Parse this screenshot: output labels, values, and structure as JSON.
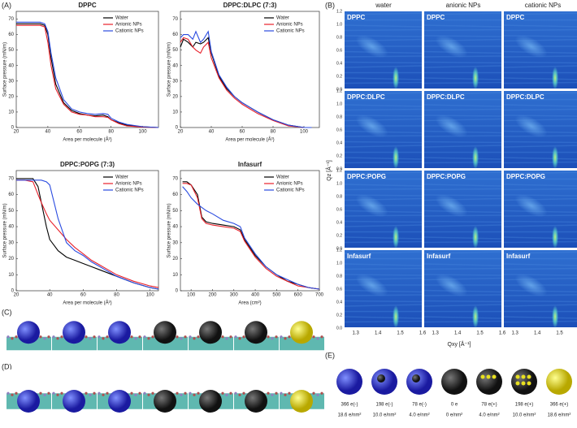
{
  "panel_labels": [
    "(A)",
    "(B)",
    "(C)",
    "(D)",
    "(E)"
  ],
  "chart_data": [
    {
      "type": "line",
      "title": "DPPC",
      "xlabel": "Area per molecule (Å²)",
      "ylabel": "Surface pressure (mN/m)",
      "legend": "upper right",
      "x": [
        20,
        25,
        30,
        35,
        38,
        40,
        42,
        45,
        50,
        55,
        60,
        65,
        70,
        75,
        78,
        80,
        85,
        90,
        100,
        110
      ],
      "xlim": [
        20,
        110
      ],
      "ylim": [
        0,
        75
      ],
      "xticks": [
        20,
        40,
        60,
        80,
        100
      ],
      "yticks": [
        0,
        10,
        20,
        30,
        40,
        50,
        60,
        70
      ],
      "series": [
        {
          "name": "Water",
          "color": "#000000",
          "values": [
            67,
            67,
            67,
            67,
            66,
            60,
            45,
            28,
            16,
            11,
            9,
            8,
            7.5,
            8,
            7,
            5,
            3,
            1.5,
            0.5,
            0
          ]
        },
        {
          "name": "Anionic NPs",
          "color": "#e8202a",
          "values": [
            66,
            66,
            66,
            66,
            65,
            55,
            40,
            25,
            15,
            10,
            8.5,
            8,
            7,
            7,
            6.5,
            5,
            2.5,
            1,
            0.3,
            0
          ]
        },
        {
          "name": "Cationic NPs",
          "color": "#2a4be0",
          "values": [
            68,
            68,
            68,
            68,
            67,
            62,
            48,
            32,
            18,
            12,
            10,
            9,
            8.5,
            9,
            8.5,
            6,
            3.5,
            2,
            0.5,
            0
          ]
        }
      ]
    },
    {
      "type": "line",
      "title": "DPPC:DLPC (7:3)",
      "xlabel": "Area per molecule (Å²)",
      "ylabel": "Surface pressure (mN/m)",
      "legend": "upper right",
      "x": [
        20,
        22,
        25,
        28,
        30,
        33,
        35,
        38,
        40,
        45,
        50,
        55,
        60,
        65,
        70,
        80,
        90,
        100,
        105
      ],
      "xlim": [
        20,
        110
      ],
      "ylim": [
        0,
        75
      ],
      "xticks": [
        20,
        40,
        60,
        80,
        100
      ],
      "yticks": [
        0,
        10,
        20,
        30,
        40,
        50,
        60,
        70
      ],
      "series": [
        {
          "name": "Water",
          "color": "#000000",
          "values": [
            52,
            57,
            55,
            52,
            55,
            54,
            55,
            58,
            48,
            33,
            25,
            20,
            16,
            13,
            10,
            5,
            1.5,
            0,
            0
          ]
        },
        {
          "name": "Anionic NPs",
          "color": "#e8202a",
          "values": [
            55,
            58,
            57,
            52,
            50,
            48,
            52,
            55,
            45,
            32,
            24,
            19,
            15,
            12,
            9,
            4.5,
            1,
            0,
            0
          ]
        },
        {
          "name": "Cationic NPs",
          "color": "#2a4be0",
          "values": [
            58,
            60,
            60,
            57,
            62,
            55,
            57,
            62,
            49,
            34,
            26,
            20,
            16,
            13,
            10,
            5,
            1.5,
            0,
            0
          ]
        }
      ]
    },
    {
      "type": "line",
      "title": "DPPC:POPG (7:3)",
      "xlabel": "Area per molecule (Å²)",
      "ylabel": "Surface pressure (mN/m)",
      "legend": "upper right",
      "x": [
        20,
        25,
        30,
        33,
        35,
        38,
        40,
        45,
        50,
        55,
        60,
        65,
        70,
        80,
        90,
        100,
        105
      ],
      "xlim": [
        20,
        105
      ],
      "ylim": [
        0,
        75
      ],
      "xticks": [
        20,
        40,
        60,
        80,
        100
      ],
      "yticks": [
        0,
        10,
        20,
        30,
        40,
        50,
        60,
        70
      ],
      "series": [
        {
          "name": "Water",
          "color": "#000000",
          "values": [
            70,
            70,
            70,
            65,
            55,
            40,
            32,
            25,
            21,
            19,
            17,
            15,
            13,
            9,
            5,
            2,
            1
          ]
        },
        {
          "name": "Anionic NPs",
          "color": "#e8202a",
          "values": [
            69,
            69,
            68,
            60,
            55,
            48,
            44,
            38,
            32,
            27,
            23,
            19,
            16,
            10,
            6,
            3,
            2
          ]
        },
        {
          "name": "Cationic NPs",
          "color": "#2a4be0",
          "values": [
            69,
            69,
            69,
            69,
            69,
            68,
            66,
            45,
            30,
            25,
            22,
            18,
            15,
            9,
            5,
            2,
            1
          ]
        }
      ]
    },
    {
      "type": "line",
      "title": "Infasurf",
      "xlabel": "Area (cm²)",
      "ylabel": "Surface pressure (mN/m)",
      "legend": "upper right",
      "x": [
        60,
        80,
        100,
        130,
        150,
        170,
        200,
        250,
        300,
        330,
        350,
        400,
        450,
        500,
        550,
        600,
        650,
        700
      ],
      "xlim": [
        50,
        700
      ],
      "ylim": [
        0,
        75
      ],
      "xticks": [
        100,
        200,
        300,
        400,
        500,
        600,
        700
      ],
      "yticks": [
        0,
        10,
        20,
        30,
        40,
        50,
        60,
        70
      ],
      "series": [
        {
          "name": "Water",
          "color": "#000000",
          "values": [
            68,
            68,
            66,
            60,
            46,
            43,
            42,
            41,
            40,
            38,
            32,
            22,
            15,
            10,
            6,
            4,
            2,
            1
          ]
        },
        {
          "name": "Anionic NPs",
          "color": "#e8202a",
          "values": [
            67,
            67,
            66,
            58,
            45,
            42,
            41,
            40,
            39,
            37,
            31,
            21,
            14,
            9,
            6,
            3,
            2,
            1
          ]
        },
        {
          "name": "Cationic NPs",
          "color": "#2a4be0",
          "values": [
            65,
            62,
            58,
            54,
            52,
            50,
            48,
            44,
            42,
            40,
            33,
            23,
            15,
            10,
            7,
            4,
            2,
            1
          ]
        }
      ]
    }
  ],
  "gixd": {
    "columns": [
      "water",
      "anionic NPs",
      "cationic NPs"
    ],
    "rows": [
      "DPPC",
      "DPPC:DLPC",
      "DPPC:POPG",
      "Infasurf"
    ],
    "ylabel": "Qz [Å⁻¹]",
    "xlabel": "Qxy [Å⁻¹]",
    "qz_ticks": [
      {
        "value": 0,
        "label": "0.0"
      },
      0.2,
      0.4,
      0.6,
      0.8,
      {
        "value": 1,
        "label": "1.0"
      },
      1.2
    ],
    "qxy_ticks": [
      1.3,
      1.4,
      1.5,
      1.6
    ],
    "qz_lim": [
      0,
      1.2
    ],
    "qxy_lim": [
      1.25,
      1.6
    ]
  },
  "nanoparticles": [
    {
      "charge": "366 e(-)",
      "density": "18.6 e/nm²"
    },
    {
      "charge": "198 e(-)",
      "density": "10.0 e/nm²"
    },
    {
      "charge": "78 e(-)",
      "density": "4.0 e/nm²"
    },
    {
      "charge": "0 e",
      "density": "0 e/nm²"
    },
    {
      "charge": "78 e(+)",
      "density": "4.0 e/nm²"
    },
    {
      "charge": "198 e(+)",
      "density": "10.0 e/nm²"
    },
    {
      "charge": "366 e(+)",
      "density": "18.6 e/nm²"
    }
  ]
}
